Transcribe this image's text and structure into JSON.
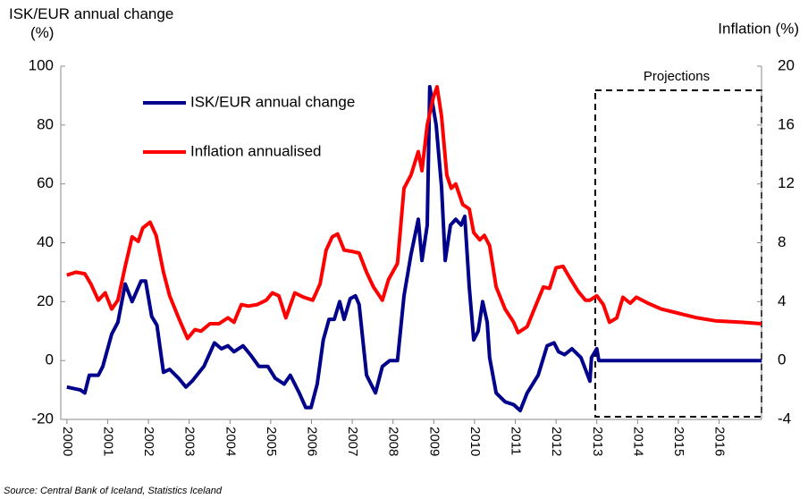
{
  "chart_data": {
    "type": "line",
    "y_label": "ISK/EUR annual change (%)",
    "y2_label": "Inflation (%)",
    "annotation": "Projections",
    "source": "Source: Central Bank of Iceland, Statistics Iceland",
    "legend": "upper left",
    "xlim": [
      1999.85,
      2017.04
    ],
    "xticks": [
      2000,
      2001,
      2002,
      2003,
      2004,
      2005,
      2006,
      2007,
      2008,
      2009,
      2010,
      2011,
      2012,
      2013,
      2014,
      2015,
      2016
    ],
    "ylim": [
      -20,
      100
    ],
    "yticks": [
      -20,
      0,
      20,
      40,
      60,
      80,
      100
    ],
    "y2lim": [
      -4,
      20
    ],
    "y2ticks": [
      -4,
      0,
      4,
      8,
      12,
      16,
      20
    ],
    "series": [
      {
        "name": "ISK/EUR annual change",
        "color": "#00008b",
        "x": [
          2000.0,
          2000.33,
          2000.44,
          2000.55,
          2000.77,
          2000.88,
          2001.1,
          2001.25,
          2001.43,
          2001.6,
          2001.82,
          2001.93,
          2002.08,
          2002.21,
          2002.37,
          2002.52,
          2002.74,
          2002.92,
          2003.07,
          2003.36,
          2003.62,
          2003.79,
          2003.95,
          2004.1,
          2004.32,
          2004.5,
          2004.71,
          2004.93,
          2005.11,
          2005.33,
          2005.48,
          2005.7,
          2005.86,
          2005.99,
          2006.14,
          2006.29,
          2006.43,
          2006.56,
          2006.69,
          2006.8,
          2006.95,
          2007.08,
          2007.17,
          2007.35,
          2007.57,
          2007.74,
          2007.92,
          2008.11,
          2008.27,
          2008.44,
          2008.62,
          2008.71,
          2008.84,
          2008.9,
          2009.06,
          2009.19,
          2009.28,
          2009.41,
          2009.54,
          2009.67,
          2009.76,
          2009.87,
          2009.98,
          2010.09,
          2010.2,
          2010.31,
          2010.37,
          2010.53,
          2010.75,
          2010.96,
          2011.12,
          2011.29,
          2011.56,
          2011.78,
          2011.95,
          2012.06,
          2012.21,
          2012.39,
          2012.61,
          2012.83,
          2012.87,
          2013.0,
          2013.05,
          2017.04
        ],
        "values": [
          -9,
          -10,
          -11,
          -5,
          -5,
          -2,
          9,
          13,
          26,
          20,
          27,
          27,
          15,
          12,
          -4,
          -3,
          -6,
          -9,
          -7,
          -2,
          6,
          4,
          5,
          3,
          5,
          2,
          -2,
          -2,
          -6,
          -8,
          -5,
          -11,
          -16,
          -16,
          -8,
          7,
          14,
          14,
          20,
          14,
          21,
          22,
          19,
          -5,
          -11,
          -2,
          0,
          0,
          22,
          36,
          48,
          34,
          46,
          93,
          80,
          59,
          34,
          46,
          48,
          46,
          49,
          25,
          7,
          10,
          20,
          13,
          1,
          -11,
          -14,
          -15,
          -17,
          -11,
          -5,
          5,
          6,
          3,
          2,
          4,
          1,
          -7,
          1,
          4,
          0,
          0
        ]
      },
      {
        "name": "Inflation annualised",
        "color": "#ff0000",
        "axis": "y2",
        "x": [
          2000.0,
          2000.22,
          2000.44,
          2000.59,
          2000.77,
          2000.94,
          2001.1,
          2001.25,
          2001.43,
          2001.6,
          2001.75,
          2001.86,
          2002.04,
          2002.19,
          2002.37,
          2002.52,
          2002.74,
          2002.96,
          2003.14,
          2003.29,
          2003.51,
          2003.73,
          2003.95,
          2004.1,
          2004.28,
          2004.45,
          2004.67,
          2004.89,
          2005.04,
          2005.2,
          2005.37,
          2005.59,
          2005.81,
          2006.03,
          2006.21,
          2006.36,
          2006.51,
          2006.64,
          2006.8,
          2007.02,
          2007.17,
          2007.35,
          2007.52,
          2007.74,
          2007.89,
          2008.11,
          2008.27,
          2008.44,
          2008.62,
          2008.71,
          2008.84,
          2008.99,
          2009.08,
          2009.19,
          2009.32,
          2009.43,
          2009.54,
          2009.71,
          2009.87,
          2009.98,
          2010.13,
          2010.24,
          2010.37,
          2010.53,
          2010.75,
          2010.96,
          2011.07,
          2011.29,
          2011.51,
          2011.69,
          2011.84,
          2012.0,
          2012.17,
          2012.32,
          2012.54,
          2012.72,
          2012.83,
          2013.0,
          2013.16,
          2013.31,
          2013.49,
          2013.64,
          2013.82,
          2013.97,
          2014.25,
          2014.58,
          2015.02,
          2015.46,
          2015.9,
          2016.56,
          2017.04
        ],
        "values": [
          5.8,
          6,
          5.9,
          5.2,
          4.1,
          4.6,
          3.5,
          4.1,
          6.4,
          8.4,
          8.1,
          9,
          9.4,
          8.5,
          6,
          4.4,
          2.9,
          1.5,
          2.1,
          2,
          2.5,
          2.5,
          2.9,
          2.6,
          3.8,
          3.7,
          3.8,
          4.1,
          4.6,
          4.4,
          2.9,
          4.6,
          4.3,
          4.1,
          5.2,
          7.5,
          8.4,
          8.6,
          7.5,
          7.4,
          7.3,
          6,
          5,
          4.1,
          5.5,
          6.6,
          11.7,
          12.6,
          14.2,
          12.9,
          16,
          17.9,
          18.6,
          16.6,
          12.6,
          11.7,
          12,
          10.6,
          10.3,
          8.7,
          8.2,
          8.5,
          7.8,
          5,
          3.5,
          2.6,
          1.9,
          2.3,
          3.8,
          5,
          4.9,
          6.3,
          6.4,
          5.7,
          4.7,
          4.1,
          4.1,
          4.4,
          3.8,
          2.6,
          2.9,
          4.3,
          3.9,
          4.3,
          3.9,
          3.5,
          3.2,
          2.9,
          2.7,
          2.6,
          2.5
        ]
      }
    ]
  }
}
